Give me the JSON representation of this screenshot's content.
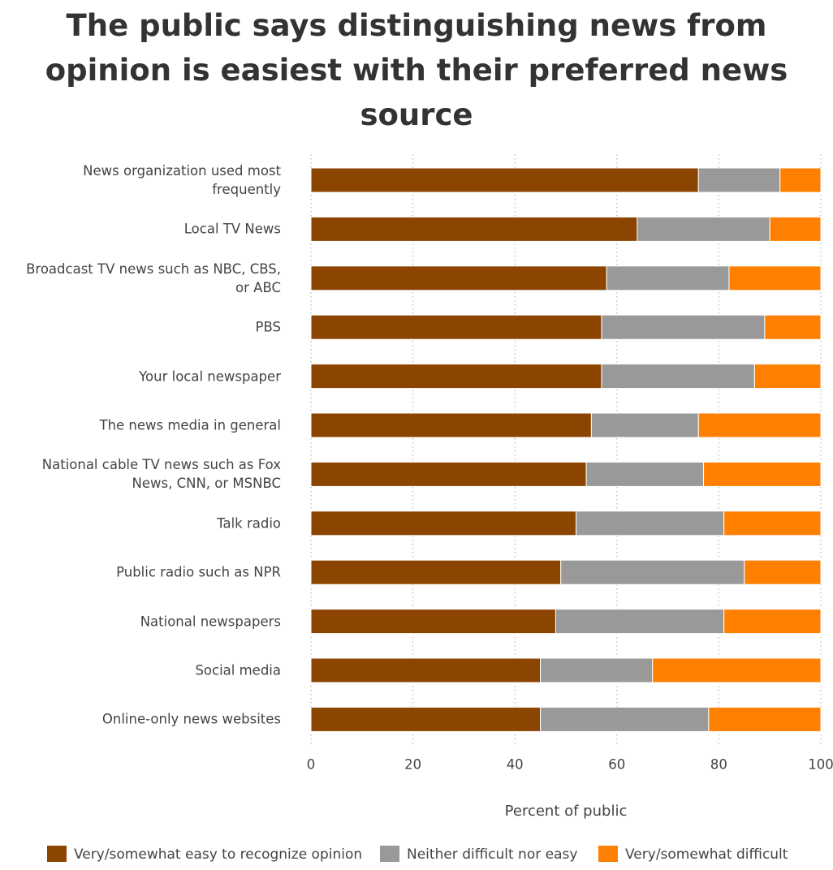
{
  "chart_data": {
    "type": "stacked-bar-horizontal",
    "title": "The public says distinguishing news from opinion is easiest with their preferred news source",
    "categories": [
      "News organization used most frequently",
      "Local TV News",
      "Broadcast TV news such as NBC, CBS, or ABC",
      "PBS",
      "Your local newspaper",
      "The news media in general",
      "National cable TV news such as Fox News, CNN, or MSNBC",
      "Talk radio",
      "Public radio such as NPR",
      "National newspapers",
      "Social media",
      "Online-only news websites"
    ],
    "series": [
      {
        "name": "Very/somewhat easy to recognize opinion",
        "color": "#8c4500",
        "values": [
          76,
          64,
          58,
          57,
          57,
          55,
          54,
          52,
          49,
          48,
          45,
          45
        ]
      },
      {
        "name": "Neither difficult nor easy",
        "color": "#999999",
        "values": [
          16,
          26,
          24,
          32,
          30,
          21,
          23,
          29,
          36,
          33,
          22,
          33
        ]
      },
      {
        "name": "Very/somewhat difficult",
        "color": "#ff7f00",
        "values": [
          8,
          10,
          18,
          11,
          13,
          24,
          23,
          19,
          15,
          19,
          33,
          22
        ]
      }
    ],
    "xlabel": "Percent of public",
    "xlim": [
      0,
      100
    ],
    "xticks": [
      0,
      20,
      40,
      60,
      80,
      100
    ],
    "grid": true
  }
}
